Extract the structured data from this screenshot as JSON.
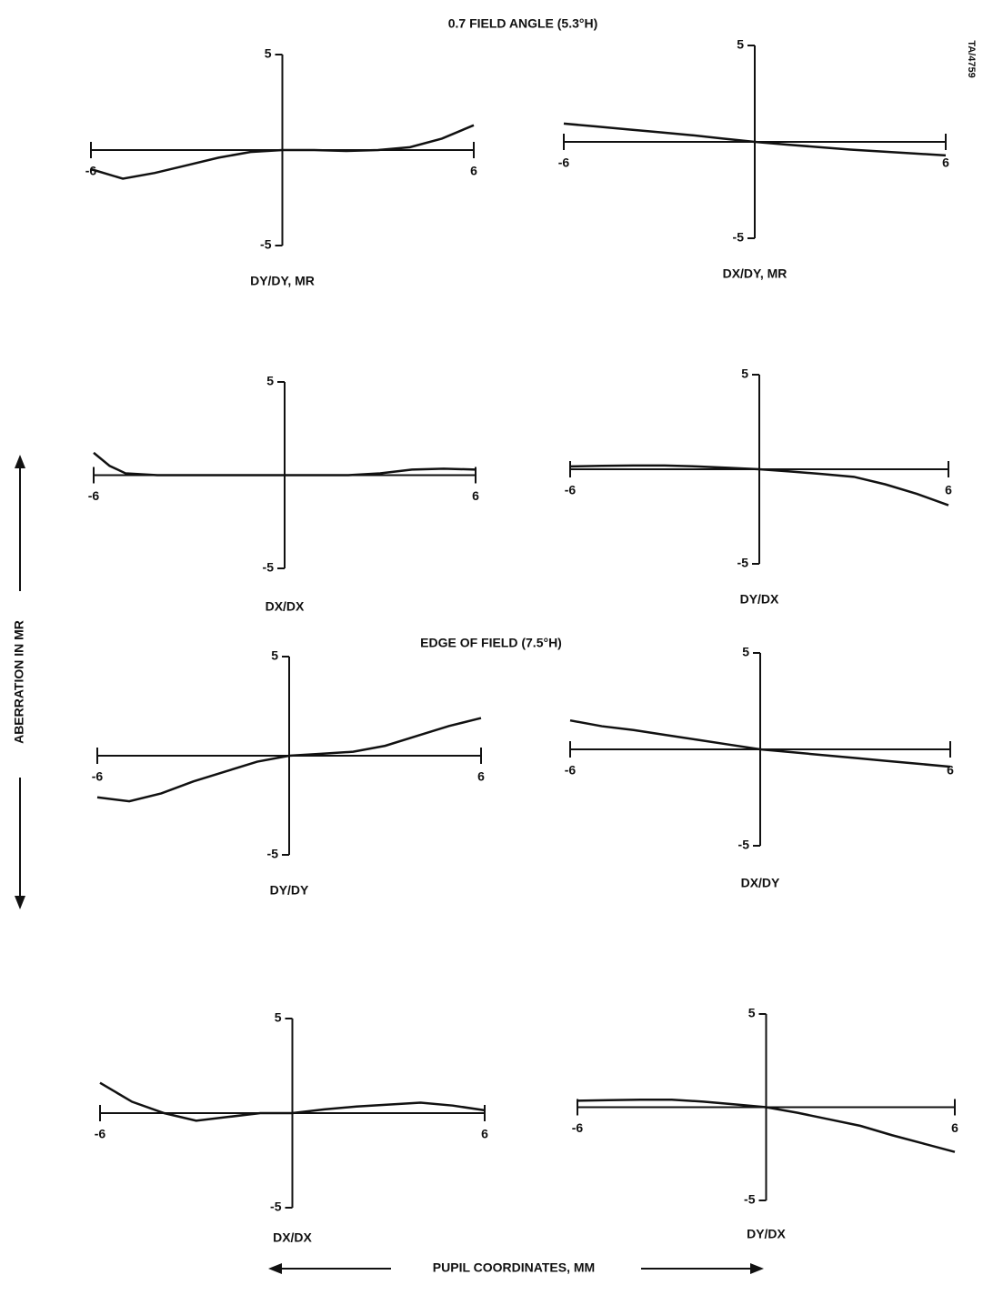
{
  "corner_label": "TA/4759",
  "sections": [
    "0.7 FIELD ANGLE (5.3°H)",
    "EDGE OF FIELD (7.5°H)"
  ],
  "y_axis_label": "ABERRATION IN MR",
  "x_axis_label": "PUPIL COORDINATES, MM",
  "chart_data": [
    {
      "type": "line",
      "title": "DY/DY, MR",
      "color": "#111",
      "xlim": [
        -6,
        6
      ],
      "ylim": [
        -5,
        5
      ],
      "xticks": [
        -6,
        6
      ],
      "yticks": [
        5,
        -5
      ],
      "x": [
        -6,
        -5,
        -4,
        -3,
        -2,
        -1,
        0,
        1,
        2,
        3,
        4,
        5,
        6
      ],
      "values": [
        -1.0,
        -1.5,
        -1.2,
        -0.8,
        -0.4,
        -0.1,
        0,
        0,
        -0.05,
        0,
        0.15,
        0.6,
        1.3
      ]
    },
    {
      "type": "line",
      "title": "DX/DY, MR",
      "color": "#111",
      "xlim": [
        -6,
        6
      ],
      "ylim": [
        -5,
        5
      ],
      "xticks": [
        -6,
        6
      ],
      "yticks": [
        5,
        -5
      ],
      "x": [
        -6,
        -5,
        -4,
        -3,
        -2,
        -1,
        0,
        1,
        2,
        3,
        4,
        5,
        6
      ],
      "values": [
        0.95,
        0.8,
        0.65,
        0.5,
        0.35,
        0.17,
        0,
        -0.14,
        -0.27,
        -0.4,
        -0.5,
        -0.6,
        -0.7
      ]
    },
    {
      "type": "line",
      "title": "DX/DX",
      "color": "#111",
      "xlim": [
        -6,
        6
      ],
      "ylim": [
        -5,
        5
      ],
      "xticks": [
        -6,
        6
      ],
      "yticks": [
        5,
        -5
      ],
      "x": [
        -6,
        -5.5,
        -5,
        -4,
        -3,
        -2,
        -1,
        0,
        1,
        2,
        3,
        4,
        5,
        6
      ],
      "values": [
        1.2,
        0.5,
        0.1,
        0,
        0,
        0,
        0,
        0,
        0,
        0,
        0.1,
        0.3,
        0.35,
        0.3
      ]
    },
    {
      "type": "line",
      "title": "DY/DX",
      "color": "#111",
      "xlim": [
        -6,
        6
      ],
      "ylim": [
        -5,
        5
      ],
      "xticks": [
        -6,
        6
      ],
      "yticks": [
        5,
        -5
      ],
      "x": [
        -6,
        -5,
        -4,
        -3,
        -2,
        -1,
        0,
        1,
        2,
        3,
        4,
        5,
        6
      ],
      "values": [
        0.15,
        0.18,
        0.2,
        0.2,
        0.15,
        0.08,
        0,
        -0.12,
        -0.25,
        -0.4,
        -0.8,
        -1.3,
        -1.9
      ]
    },
    {
      "type": "line",
      "title": "DY/DY",
      "color": "#111",
      "xlim": [
        -6,
        6
      ],
      "ylim": [
        -5,
        5
      ],
      "xticks": [
        -6,
        6
      ],
      "yticks": [
        5,
        -5
      ],
      "x": [
        -6,
        -5,
        -4,
        -3,
        -2,
        -1,
        0,
        1,
        2,
        3,
        4,
        5,
        6
      ],
      "values": [
        -2.1,
        -2.3,
        -1.9,
        -1.3,
        -0.8,
        -0.3,
        0,
        0.1,
        0.2,
        0.5,
        1.0,
        1.5,
        1.9
      ]
    },
    {
      "type": "line",
      "title": "DX/DY",
      "color": "#111",
      "xlim": [
        -6,
        6
      ],
      "ylim": [
        -5,
        5
      ],
      "xticks": [
        -6,
        6
      ],
      "yticks": [
        5,
        -5
      ],
      "x": [
        -6,
        -5,
        -4,
        -3,
        -2,
        -1,
        0,
        1,
        2,
        3,
        4,
        5,
        6
      ],
      "values": [
        1.5,
        1.2,
        1.0,
        0.75,
        0.5,
        0.25,
        0,
        -0.15,
        -0.3,
        -0.45,
        -0.6,
        -0.75,
        -0.9
      ]
    },
    {
      "type": "line",
      "title": "DX/DX",
      "color": "#111",
      "xlim": [
        -6,
        6
      ],
      "ylim": [
        -5,
        5
      ],
      "xticks": [
        -6,
        6
      ],
      "yticks": [
        5,
        -5
      ],
      "x": [
        -6,
        -5,
        -4,
        -3,
        -2,
        -1,
        0,
        1,
        2,
        3,
        4,
        5,
        6
      ],
      "values": [
        1.6,
        0.6,
        0,
        -0.4,
        -0.2,
        0,
        0,
        0.2,
        0.35,
        0.45,
        0.55,
        0.4,
        0.15
      ]
    },
    {
      "type": "line",
      "title": "DY/DX",
      "color": "#111",
      "xlim": [
        -6,
        6
      ],
      "ylim": [
        -5,
        5
      ],
      "xticks": [
        -6,
        6
      ],
      "yticks": [
        5,
        -5
      ],
      "x": [
        -6,
        -5,
        -4,
        -3,
        -2,
        -1,
        0,
        1,
        2,
        3,
        4,
        5,
        6
      ],
      "values": [
        0.35,
        0.38,
        0.4,
        0.4,
        0.3,
        0.15,
        0,
        -0.3,
        -0.65,
        -1.0,
        -1.5,
        -1.95,
        -2.4
      ]
    }
  ]
}
